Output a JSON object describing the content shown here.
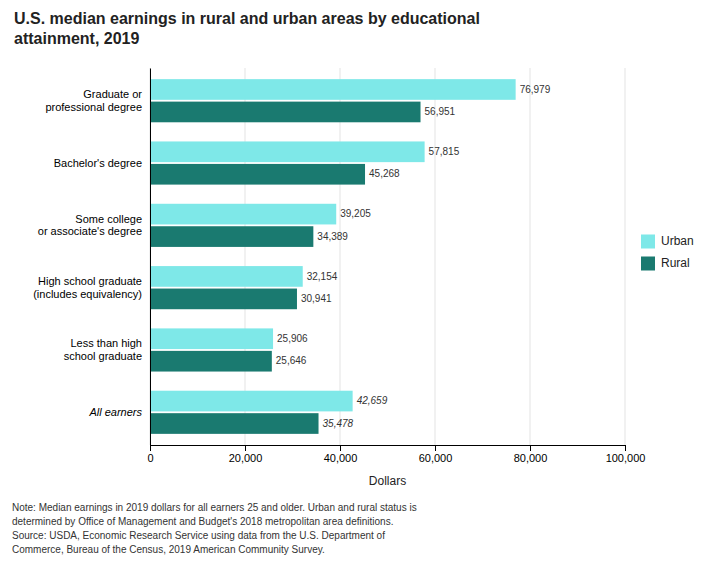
{
  "chart_data": {
    "type": "bar",
    "orientation": "horizontal",
    "title": "U.S. median earnings in rural and urban areas by educational\nattainment, 2019",
    "categories": [
      "Graduate or\nprofessional degree",
      "Bachelor's degree",
      "Some college\nor associate's degree",
      "High school graduate\n(includes equivalency)",
      "Less than high\nschool graduate",
      "All earners"
    ],
    "series": [
      {
        "name": "Urban",
        "color": "#7ee8e8",
        "values": [
          76979,
          57815,
          39205,
          32154,
          25906,
          42659
        ],
        "value_labels": [
          "76,979",
          "57,815",
          "39,205",
          "32,154",
          "25,906",
          "42,659"
        ]
      },
      {
        "name": "Rural",
        "color": "#1a7a70",
        "values": [
          56951,
          45268,
          34389,
          30941,
          25646,
          35478
        ],
        "value_labels": [
          "56,951",
          "45,268",
          "34,389",
          "30,941",
          "25,646",
          "35,478"
        ]
      }
    ],
    "xlim": [
      0,
      100000
    ],
    "xticks": [
      0,
      {
        "value": 20000,
        "label": "20,000"
      },
      {
        "value": 40000,
        "label": "40,000"
      },
      {
        "value": 60000,
        "label": "60,000"
      },
      {
        "value": 80000,
        "label": "80,000"
      },
      {
        "value": 100000,
        "label": "100,000"
      }
    ],
    "xlabel": "Dollars",
    "annotations": [
      "Note: Median earnings in 2019 dollars for all earners 25 and older. Urban and rural status is\ndetermined by Office of Management and Budget's 2018 metropolitan area definitions.\nSource: USDA, Economic Research Service using data from the U.S. Department of\nCommerce, Bureau of the Census, 2019 American Community Survey."
    ],
    "grid": true,
    "legend": "right",
    "data_labels": true
  }
}
